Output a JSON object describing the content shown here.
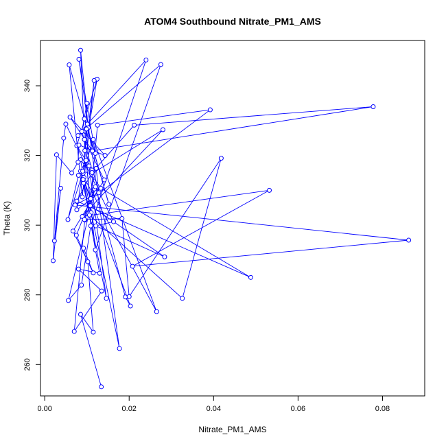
{
  "chart_data": {
    "type": "line",
    "title": "ATOM4 Southbound Nitrate_PM1_AMS",
    "xlabel": "Nitrate_PM1_AMS",
    "ylabel": "Theta (K)",
    "xlim": [
      -0.001,
      0.09
    ],
    "ylim": [
      251,
      353
    ],
    "xticks": [
      0.0,
      0.02,
      0.04,
      0.06,
      0.08
    ],
    "xtick_labels": [
      "0.00",
      "0.02",
      "0.04",
      "0.06",
      "0.08"
    ],
    "yticks": [
      260,
      280,
      300,
      320,
      340
    ],
    "ytick_labels": [
      "260",
      "280",
      "300",
      "320",
      "340"
    ],
    "grid": false,
    "legend": "none",
    "series": [
      {
        "color": "#0000FF",
        "marker": "open-circle",
        "x": [
          0.0134,
          0.0085,
          0.0115,
          0.0102,
          0.0075,
          0.0118,
          0.0095,
          0.007,
          0.0135,
          0.008,
          0.013,
          0.0092,
          0.01,
          0.0088,
          0.0112,
          0.0076,
          0.0124,
          0.0095,
          0.0085,
          0.0103,
          0.0117,
          0.0089,
          0.0058,
          0.0152,
          0.0094,
          0.012,
          0.0081,
          0.0177,
          0.011,
          0.0091,
          0.0099,
          0.0105,
          0.0146,
          0.0085,
          0.0203,
          0.0191,
          0.012,
          0.0056,
          0.0087,
          0.0109,
          0.024,
          0.0101,
          0.0079,
          0.0275,
          0.012,
          0.0098,
          0.008,
          0.0055,
          0.0115,
          0.0265,
          0.0093,
          0.0091,
          0.0109,
          0.0125,
          0.0392,
          0.0076,
          0.009,
          0.0111,
          0.028,
          0.0089,
          0.0532,
          0.0208,
          0.0862,
          0.0072,
          0.0128,
          0.0122,
          0.0094,
          0.0183,
          0.02,
          0.0418,
          0.0326,
          0.0106,
          0.0085,
          0.0133,
          0.0488,
          0.0076,
          0.0112,
          0.0212,
          0.0778,
          0.0113,
          0.006,
          0.0143,
          0.0081,
          0.0079,
          0.0064,
          0.0028,
          0.002,
          0.0038,
          0.0023,
          0.0045,
          0.005,
          0.0163,
          0.0121,
          0.0284,
          0.0108,
          0.0094,
          0.0141,
          0.0067,
          0.0115,
          0.0092
        ],
        "y": [
          253.6,
          274.4,
          269.3,
          289.5,
          297.1,
          310.4,
          301.5,
          269.5,
          281.1,
          287.4,
          286.2,
          312.1,
          335.0,
          326.9,
          315.8,
          322.8,
          341.9,
          321.4,
          350.2,
          328.0,
          341.5,
          308.1,
          346.0,
          306.0,
          330.5,
          320.6,
          347.6,
          264.6,
          303.6,
          314.9,
          327.6,
          317.0,
          279.0,
          315.5,
          276.8,
          279.4,
          311.0,
          278.4,
          282.8,
          299.8,
          347.4,
          329.0,
          325.7,
          346.1,
          292.9,
          318.6,
          314.3,
          301.6,
          324.6,
          275.2,
          313.7,
          313.1,
          307.6,
          328.7,
          333.1,
          304.4,
          315.5,
          314.7,
          327.4,
          302.5,
          310.0,
          288.2,
          295.7,
          305.8,
          309.3,
          316.3,
          301.6,
          301.9,
          279.5,
          319.2,
          279.0,
          302.9,
          318.8,
          310.6,
          285.0,
          306.9,
          315.1,
          328.7,
          334.0,
          321.3,
          331.0,
          320.0,
          323.0,
          318.1,
          315.0,
          320.2,
          289.8,
          310.6,
          295.5,
          325.0,
          329.0,
          301.0,
          299.8,
          290.9,
          305.6,
          324.6,
          313.0,
          298.3,
          286.3,
          293.4
        ]
      }
    ]
  }
}
